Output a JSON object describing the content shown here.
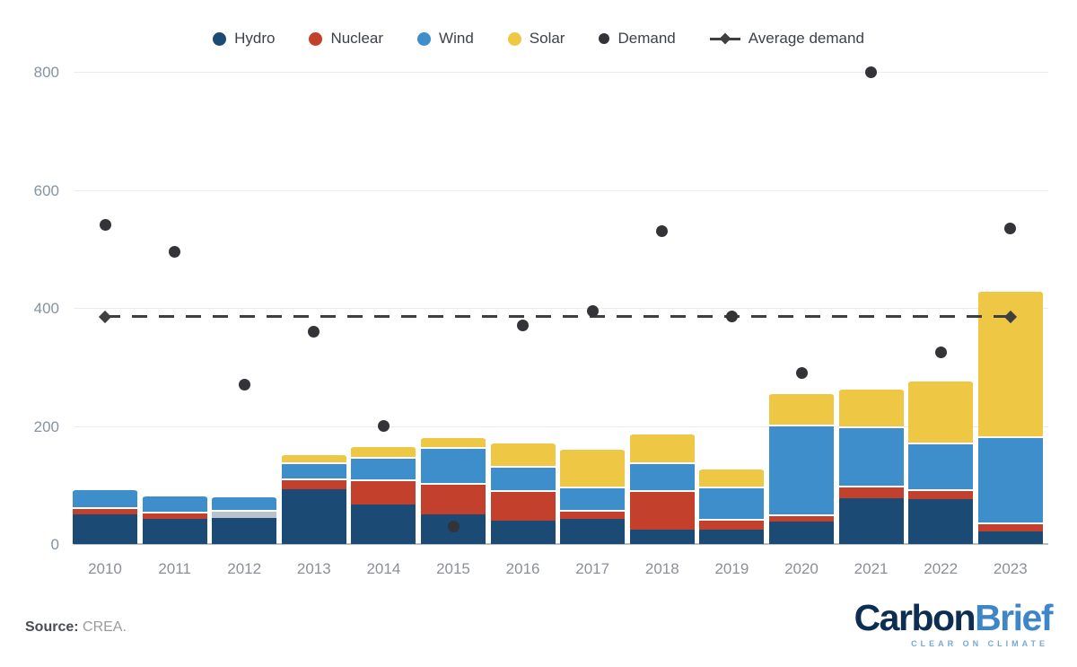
{
  "legend": {
    "items": [
      {
        "label": "Hydro",
        "marker": "circle",
        "color": "#1b4a74"
      },
      {
        "label": "Nuclear",
        "marker": "circle",
        "color": "#c2402c"
      },
      {
        "label": "Wind",
        "marker": "circle",
        "color": "#3d8ecb"
      },
      {
        "label": "Solar",
        "marker": "circle",
        "color": "#eec844"
      },
      {
        "label": "Demand",
        "marker": "circle-small",
        "color": "#333338"
      },
      {
        "label": "Average demand",
        "marker": "dashed-line-diamond",
        "color": "#3f3f42"
      }
    ]
  },
  "chart_data": {
    "type": "bar",
    "subtype": "stacked-bars-with-demand-points-and-average-line",
    "categories": [
      "2010",
      "2011",
      "2012",
      "2013",
      "2014",
      "2015",
      "2016",
      "2017",
      "2018",
      "2019",
      "2020",
      "2021",
      "2022",
      "2023"
    ],
    "series": [
      {
        "name": "Hydro",
        "color": "#1b4a74",
        "in_legend": true,
        "values": [
          50,
          42,
          44,
          93,
          67,
          50,
          40,
          43,
          24,
          24,
          38,
          77,
          76,
          21
        ]
      },
      {
        "name": "Nuclear",
        "color": "#c2402c",
        "in_legend": true,
        "values": [
          12,
          12,
          0,
          18,
          43,
          53,
          52,
          15,
          67,
          18,
          12,
          22,
          17,
          15
        ]
      },
      {
        "name": "Unlabeled grey band",
        "color": "#b9c3cc",
        "in_legend": false,
        "values": [
          0,
          0,
          14,
          0,
          0,
          0,
          0,
          0,
          0,
          0,
          0,
          0,
          0,
          0
        ]
      },
      {
        "name": "Wind",
        "color": "#3d8ecb",
        "in_legend": true,
        "values": [
          32,
          30,
          24,
          27,
          37,
          62,
          40,
          40,
          47,
          55,
          152,
          100,
          79,
          147
        ]
      },
      {
        "name": "Solar",
        "color": "#eec844",
        "in_legend": true,
        "values": [
          0,
          0,
          0,
          15,
          20,
          18,
          41,
          65,
          50,
          32,
          55,
          65,
          106,
          248
        ]
      }
    ],
    "points": {
      "name": "Demand",
      "color": "#333338",
      "values": [
        540,
        495,
        270,
        360,
        200,
        30,
        370,
        395,
        530,
        385,
        290,
        800,
        325,
        535
      ]
    },
    "average_line": {
      "name": "Average demand",
      "value": 385,
      "style": "dashed",
      "color": "#3f3f42"
    },
    "title": "",
    "xlabel": "",
    "ylabel": "",
    "y_axis": {
      "ticks": [
        0,
        200,
        400,
        600,
        800
      ],
      "range": [
        0,
        800
      ],
      "gridlines": true
    },
    "legend_position": "top"
  },
  "footer": {
    "source_label": "Source:",
    "source_value": " CREA.",
    "logo": {
      "part1": "Carbon",
      "part2": "Brief",
      "tagline": "CLEAR ON CLIMATE"
    }
  }
}
